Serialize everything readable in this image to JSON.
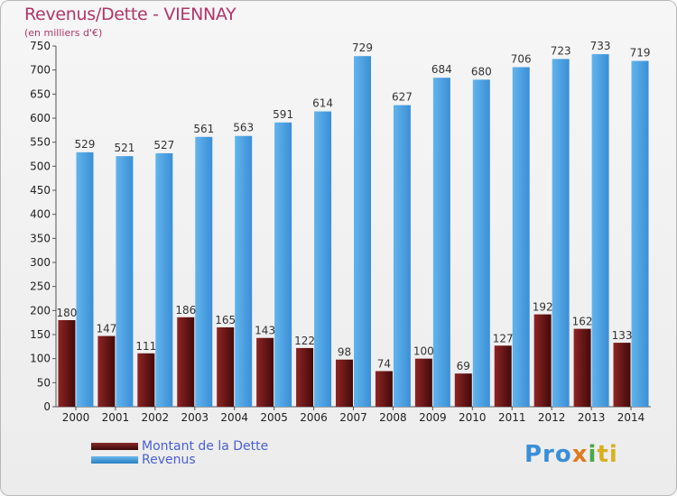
{
  "title": "Revenus/Dette - VIENNAY",
  "subtitle": "(en milliers d'€)",
  "legend": {
    "debt_label": "Montant de la Dette",
    "revenue_label": "Revenus"
  },
  "logo": {
    "p1": "Pro",
    "p2": "x",
    "p3": "i",
    "p4": "ti"
  },
  "colors": {
    "debt": "#6b1a1a",
    "revenue": "#4a9fe0",
    "title": "#b0356a",
    "legend_text": "#4a5fd0"
  },
  "chart_data": {
    "type": "bar",
    "categories": [
      "2000",
      "2001",
      "2002",
      "2003",
      "2004",
      "2005",
      "2006",
      "2007",
      "2008",
      "2009",
      "2010",
      "2011",
      "2012",
      "2013",
      "2014"
    ],
    "series": [
      {
        "name": "Montant de la Dette",
        "values": [
          180,
          147,
          111,
          186,
          165,
          143,
          122,
          98,
          74,
          100,
          69,
          127,
          192,
          162,
          133
        ]
      },
      {
        "name": "Revenus",
        "values": [
          529,
          521,
          527,
          561,
          563,
          591,
          614,
          729,
          627,
          684,
          680,
          706,
          723,
          733,
          719
        ]
      }
    ],
    "ylim": [
      0,
      750
    ],
    "yticks": [
      0,
      50,
      100,
      150,
      200,
      250,
      300,
      350,
      400,
      450,
      500,
      550,
      600,
      650,
      700,
      750
    ],
    "grid": false,
    "legend_position": "bottom-left"
  }
}
